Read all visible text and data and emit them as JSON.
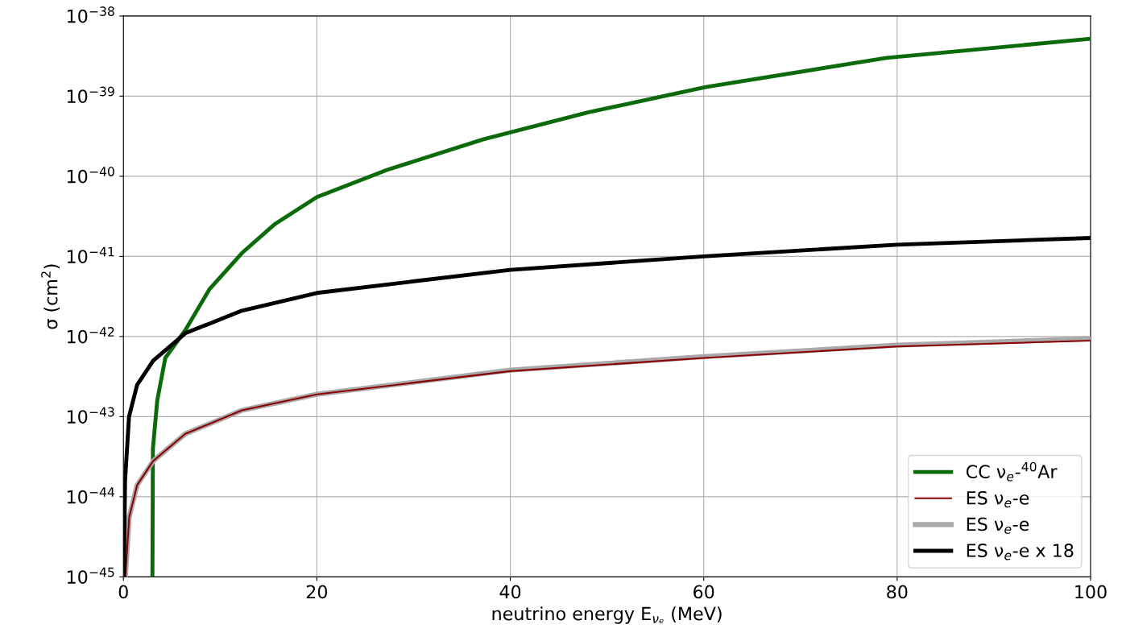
{
  "chart_data": {
    "type": "line",
    "xlabel": "neutrino energy E$_{νₑ}$ (MeV)",
    "ylabel": "σ (cm$^{2}$)",
    "log": "y",
    "xlim": [
      0,
      100
    ],
    "xticks": [
      0,
      20,
      40,
      60,
      80,
      100
    ],
    "ylim": [
      1e-45,
      1e-38
    ],
    "yticks": [
      {
        "value": 1e-45,
        "label": "10$^{−45}$"
      },
      {
        "value": 1e-44,
        "label": "10$^{−44}$"
      },
      {
        "value": 1e-43,
        "label": "10$^{−43}$"
      },
      {
        "value": 1e-42,
        "label": "10$^{−42}$"
      },
      {
        "value": 1e-41,
        "label": "10$^{−41}$"
      },
      {
        "value": 1e-40,
        "label": "10$^{−40}$"
      },
      {
        "value": 1e-39,
        "label": "10$^{−39}$"
      },
      {
        "value": 1e-38,
        "label": "10$^{−38}$"
      }
    ],
    "grid": true,
    "legend": "bottom right",
    "marker": "none",
    "line_style": "solid",
    "series": [
      {
        "name": "CC ν$_{e}$-$^{40}$Ar",
        "color": "#0b6b0b",
        "x": [
          3.0,
          3.05,
          3.5,
          4.33,
          6.4,
          8.9,
          12.25,
          15.6,
          20,
          27.25,
          37.25,
          48.1,
          60.2,
          78.9,
          100
        ],
        "values": [
          1e-45,
          4e-44,
          1.6e-43,
          5.4e-43,
          1.2e-42,
          3.9e-42,
          1.1e-41,
          2.5e-41,
          5.5e-41,
          1.2e-40,
          2.9e-40,
          6.3e-40,
          1.3e-39,
          3e-39,
          5.2e-39
        ]
      },
      {
        "name": "ES ν$_{e}$-e",
        "color": "#8b0000",
        "x": [
          0.2,
          0.6,
          1.42,
          3.08,
          6.4,
          12.25,
          20,
          40,
          60,
          80,
          100
        ],
        "values": [
          1e-45,
          5.6e-45,
          1.4e-44,
          2.8e-44,
          6.1e-44,
          1.2e-43,
          1.9e-43,
          3.7e-43,
          5.4e-43,
          7.5e-43,
          8.9e-43
        ]
      },
      {
        "name": "ES ν$_{e}$-e",
        "color": "#a9a9a9",
        "x": [
          0.2,
          0.6,
          1.42,
          3.08,
          6.4,
          12.25,
          20,
          40,
          60,
          80,
          100
        ],
        "values": [
          1e-45,
          5.6e-45,
          1.4e-44,
          2.8e-44,
          6.1e-44,
          1.2e-43,
          1.9e-43,
          3.8e-43,
          5.6e-43,
          7.8e-43,
          9.4e-43
        ]
      },
      {
        "name": "ES ν$_{e}$-e x 18",
        "color": "#000000",
        "x": [
          0.05,
          0.17,
          0.58,
          1.42,
          3.08,
          6.4,
          12.25,
          20,
          40,
          60,
          80,
          100
        ],
        "values": [
          1e-45,
          1.6e-44,
          1e-43,
          2.5e-43,
          5e-43,
          1.1e-42,
          2.1e-42,
          3.5e-42,
          6.8e-42,
          1e-41,
          1.4e-41,
          1.7e-41
        ]
      }
    ]
  }
}
